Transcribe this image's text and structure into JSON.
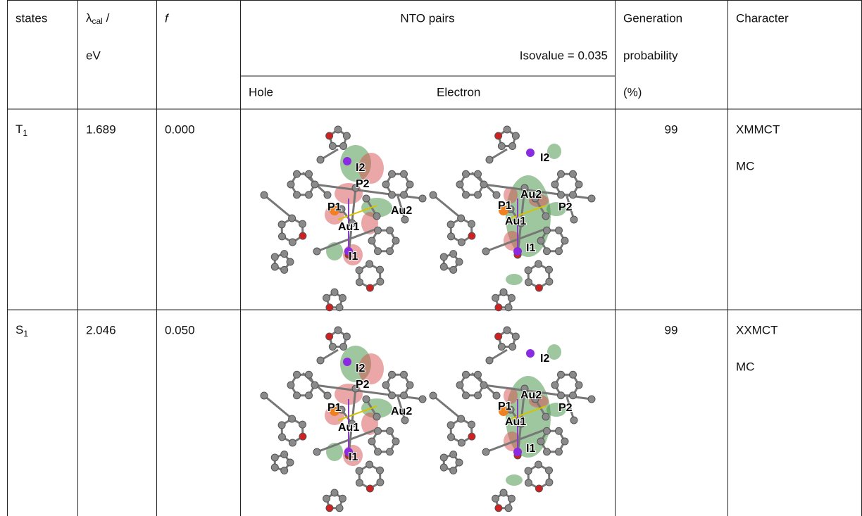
{
  "header": {
    "states": "states",
    "lambda_symbol": "λ",
    "lambda_sub": "cal",
    "lambda_slash": " /",
    "lambda_unit": "eV",
    "f": "f",
    "nto": "NTO pairs",
    "isovalue": "Isovalue = 0.035",
    "hole": "Hole",
    "electron": "Electron",
    "generation": [
      "Generation",
      "probability",
      "(%)"
    ],
    "character": "Character"
  },
  "table": {
    "rows": [
      {
        "state": "T",
        "state_sub": "1",
        "lambda": "1.689",
        "f": "0.000",
        "probability": "99",
        "character": [
          "XMMCT",
          "MC"
        ],
        "hole_labels": [
          "I2",
          "P2",
          "P1",
          "Au2",
          "Au1",
          "I1"
        ],
        "electron_labels": [
          "I2",
          "Au2",
          "P1",
          "P2",
          "Au1",
          "I1"
        ]
      },
      {
        "state": "S",
        "state_sub": "1",
        "lambda": "2.046",
        "f": "0.050",
        "probability": "99",
        "character": [
          "XXMCT",
          "MC"
        ],
        "hole_labels": [
          "I2",
          "P2",
          "P1",
          "Au2",
          "Au1",
          "I1"
        ],
        "electron_labels": [
          "I2",
          "Au2",
          "P1",
          "P2",
          "Au1",
          "I1"
        ]
      }
    ]
  }
}
